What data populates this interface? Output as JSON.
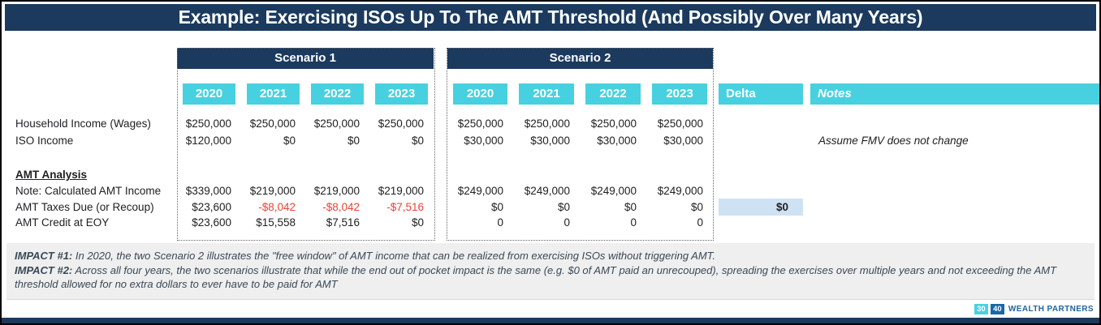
{
  "title": "Example: Exercising ISOs Up To The AMT Threshold (And Possibly Over Many Years)",
  "colors": {
    "navy": "#1b3a5e",
    "cyan": "#47d1e0",
    "red": "#ea4335",
    "deltaBg": "#cfe2f3",
    "impactBg": "#efefef",
    "logoBlue": "#1668a8",
    "logoText": "#24649c"
  },
  "scenarios": [
    {
      "label": "Scenario 1",
      "years": [
        "2020",
        "2021",
        "2022",
        "2023"
      ]
    },
    {
      "label": "Scenario 2",
      "years": [
        "2020",
        "2021",
        "2022",
        "2023"
      ]
    }
  ],
  "delta_header": "Delta",
  "notes_header": "Notes",
  "table": {
    "rows": [
      {
        "label": "Household Income (Wages)",
        "s1": [
          "$250,000",
          "$250,000",
          "$250,000",
          "$250,000"
        ],
        "s2": [
          "$250,000",
          "$250,000",
          "$250,000",
          "$250,000"
        ]
      },
      {
        "label": "ISO Income",
        "s1": [
          "$120,000",
          "$0",
          "$0",
          "$0"
        ],
        "s2": [
          "$30,000",
          "$30,000",
          "$30,000",
          "$30,000"
        ],
        "note": "Assume FMV does not change"
      },
      {
        "label": "AMT Analysis",
        "section": true
      },
      {
        "label": "Note: Calculated AMT Income",
        "s1": [
          "$339,000",
          "$219,000",
          "$219,000",
          "$219,000"
        ],
        "s2": [
          "$249,000",
          "$249,000",
          "$249,000",
          "$249,000"
        ]
      },
      {
        "label": "AMT Taxes Due (or Recoup)",
        "s1": [
          "$23,600",
          "-$8,042",
          "-$8,042",
          "-$7,516"
        ],
        "s2": [
          "$0",
          "$0",
          "$0",
          "$0"
        ],
        "delta": "$0"
      },
      {
        "label": "AMT Credit at EOY",
        "s1": [
          "$23,600",
          "$15,558",
          "$7,516",
          "$0"
        ],
        "s2": [
          "0",
          "0",
          "0",
          "0"
        ]
      }
    ]
  },
  "impacts": [
    {
      "label": "IMPACT #1:",
      "text": " In 2020, the two Scenario 2 illustrates the \"free window\" of AMT income that can be realized from exercising ISOs without triggering AMT."
    },
    {
      "label": "IMPACT #2:",
      "text": " Across all four years, the two scenarios illustrate that while the end out of pocket impact is the same (e.g. $0 of AMT paid an unrecouped), spreading the exercises over multiple years and not exceeding the AMT threshold allowed for no extra dollars to ever have to be paid for AMT"
    }
  ],
  "logo": {
    "box1": "30",
    "box2": "40",
    "name": "WEALTH PARTNERS"
  }
}
